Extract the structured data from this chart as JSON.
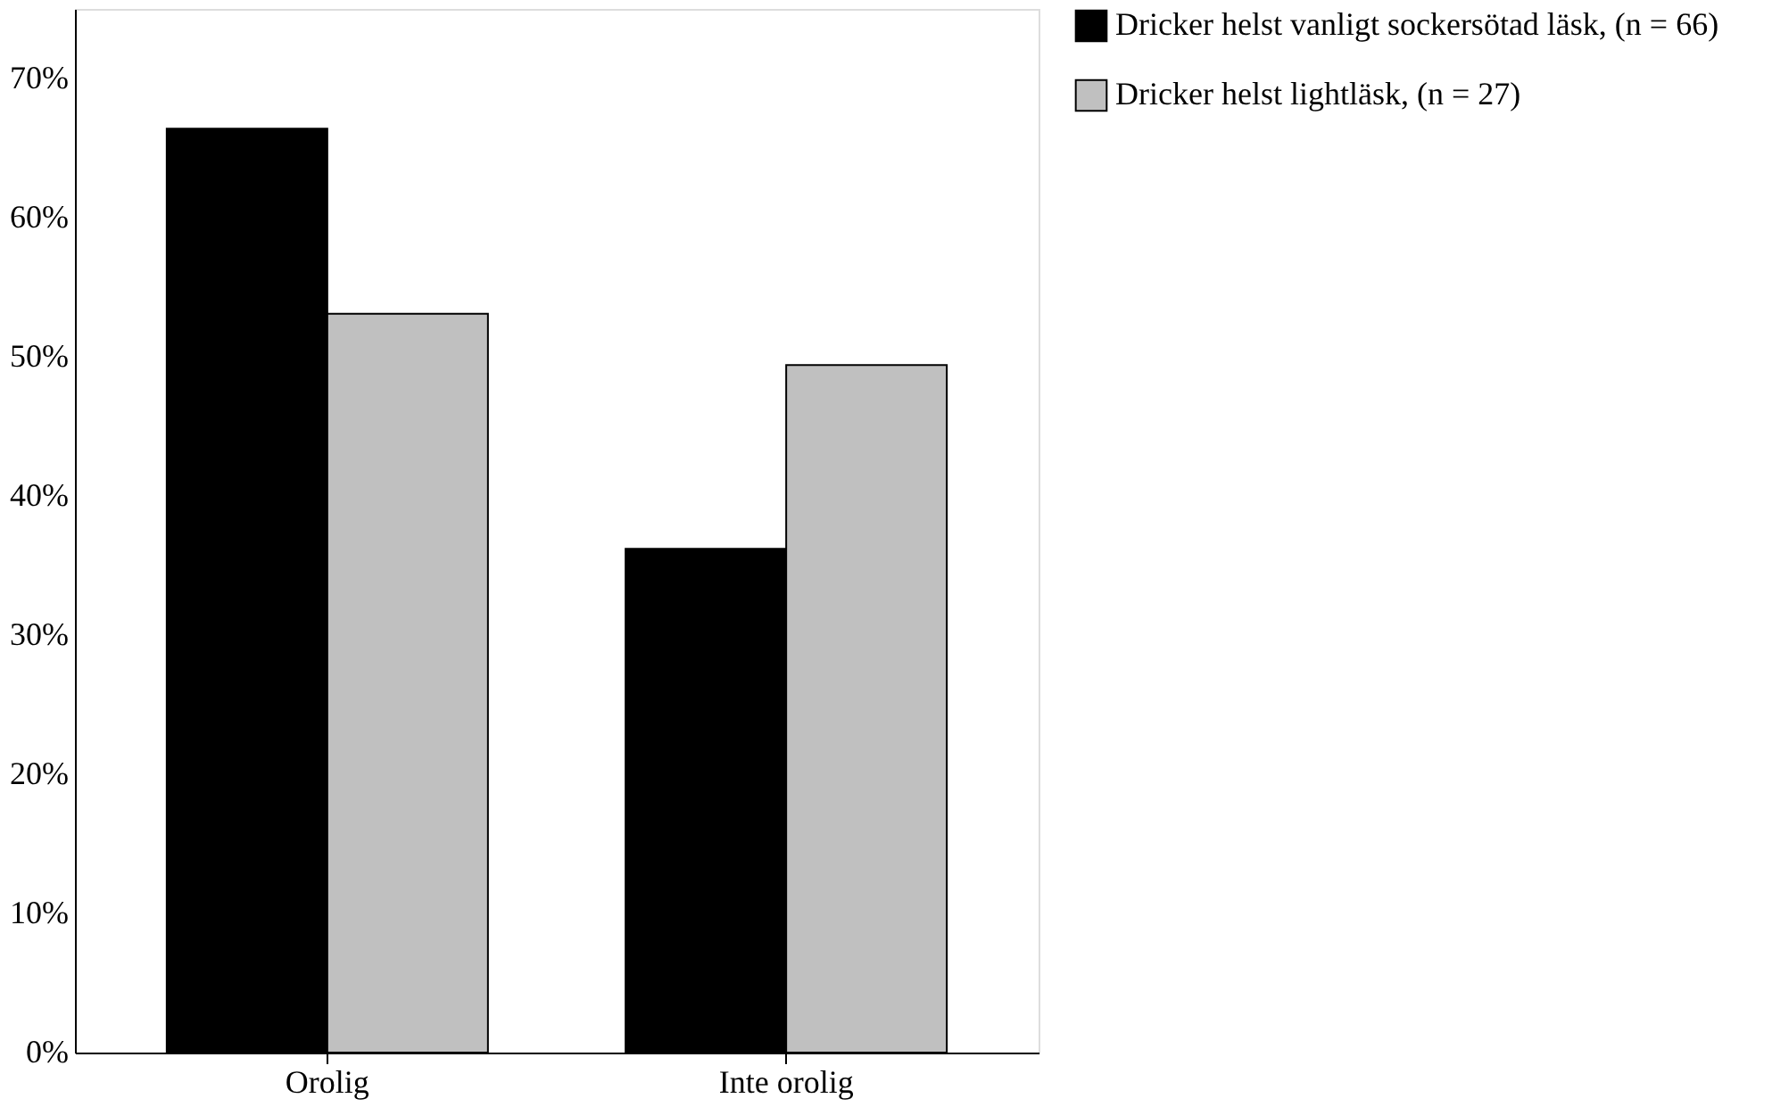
{
  "chart_data": {
    "type": "bar",
    "categories": [
      "Orolig",
      "Inte orolig"
    ],
    "series": [
      {
        "name": "Dricker helst vanligt sockersötad läsk, (n = 66)",
        "color": "#000000",
        "values": [
          66.4,
          36.2
        ]
      },
      {
        "name": "Dricker helst lightläsk, (n = 27)",
        "color": "#c0c0c0",
        "values": [
          53.1,
          49.4
        ]
      }
    ],
    "ylim": [
      0,
      75
    ],
    "yticks": [
      {
        "value": 0,
        "label": "0%"
      },
      {
        "value": 10,
        "label": "10%"
      },
      {
        "value": 20,
        "label": "20%"
      },
      {
        "value": 30,
        "label": "30%"
      },
      {
        "value": 40,
        "label": "40%"
      },
      {
        "value": 50,
        "label": "50%"
      },
      {
        "value": 60,
        "label": "60%"
      },
      {
        "value": 70,
        "label": "70%"
      }
    ],
    "grid": false,
    "legend": "top right"
  }
}
